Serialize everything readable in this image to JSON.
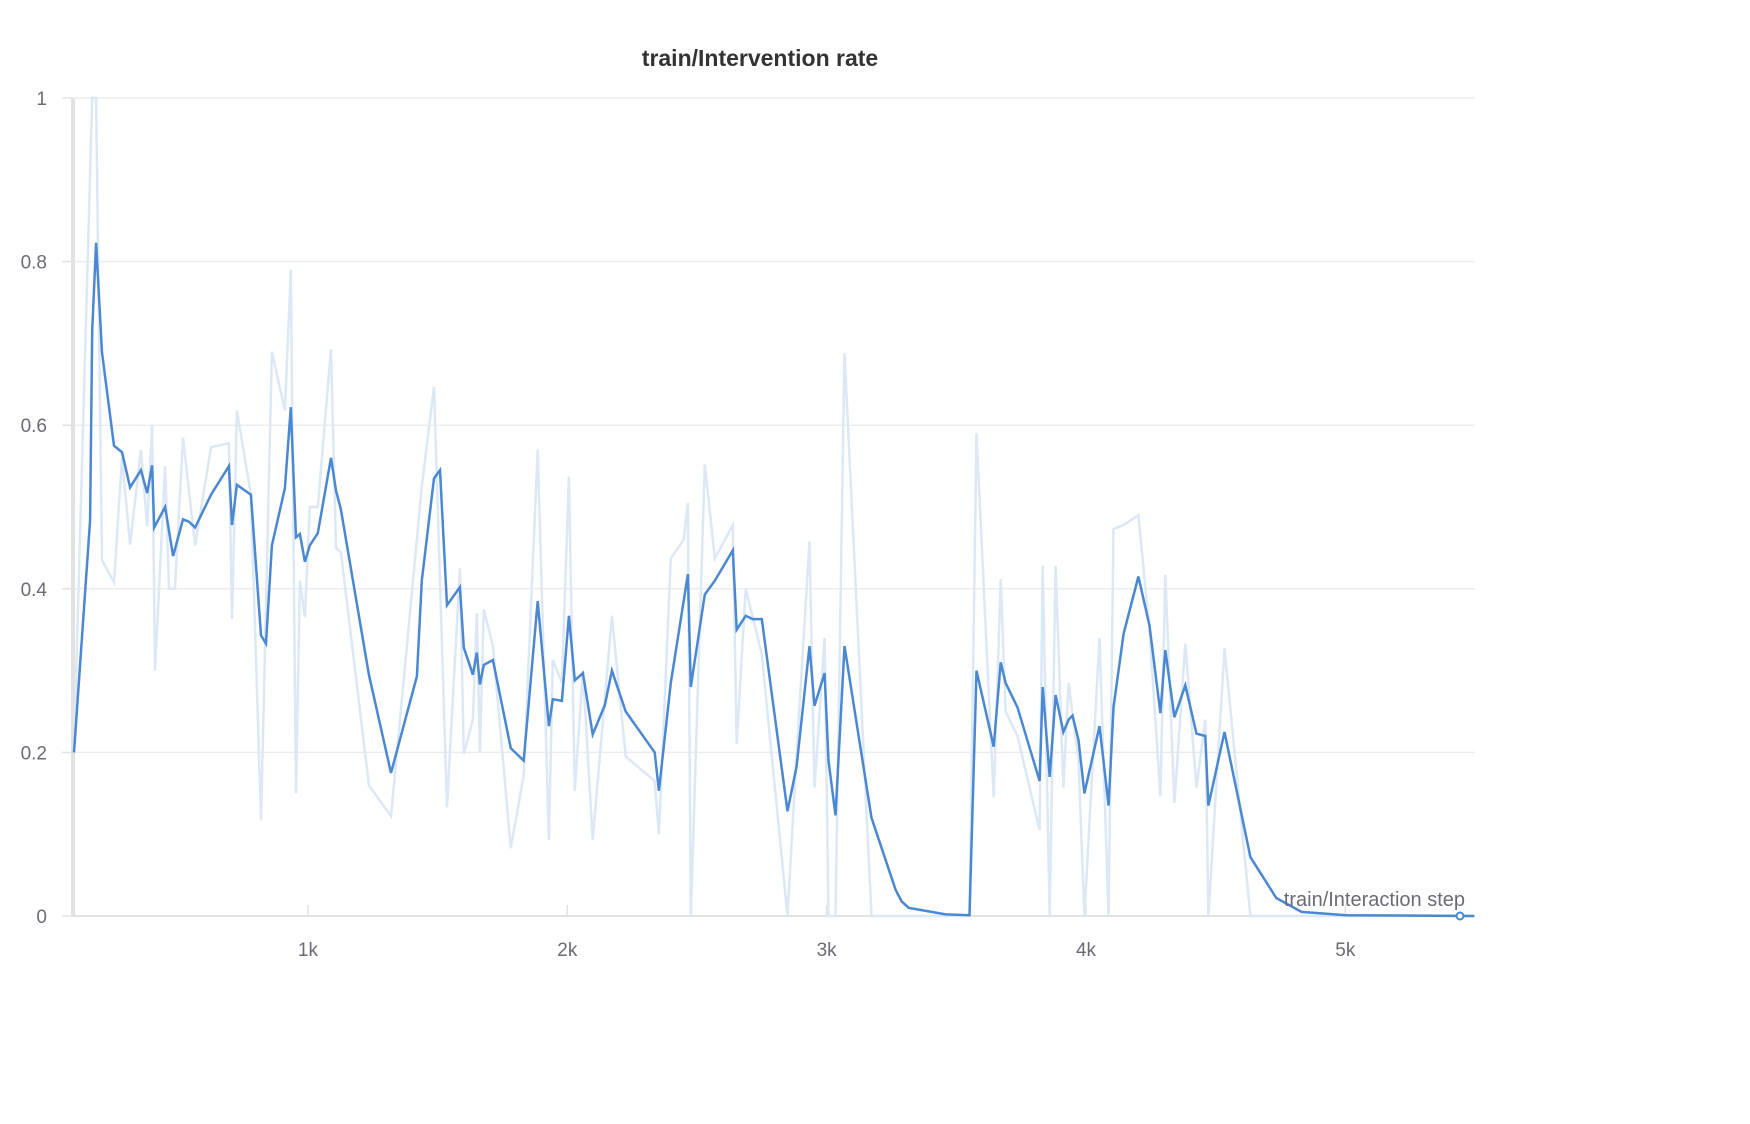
{
  "chart_data": {
    "type": "line",
    "title": "train/Intervention rate",
    "xlabel": "train/Interaction step",
    "ylabel": "",
    "xlim": [
      94,
      5500
    ],
    "ylim": [
      0,
      1
    ],
    "grid": true,
    "legend": "none",
    "x_ticks": [
      1000,
      2000,
      3000,
      4000,
      5000
    ],
    "x_tick_labels": [
      "1k",
      "2k",
      "3k",
      "4k",
      "5k"
    ],
    "y_ticks": [
      0,
      0.2,
      0.4,
      0.6,
      0.8,
      1
    ],
    "y_tick_labels": [
      "0",
      "0.2",
      "0.4",
      "0.6",
      "0.8",
      "1"
    ],
    "colors": {
      "smoothed": "#4a88d4",
      "raw": "#dce8f6",
      "grid": "#ececf0",
      "axis": "#e2e2e2"
    },
    "series": [
      {
        "role": "raw",
        "x": [
          98,
          168,
          183,
          206,
          252,
          283,
          314,
          356,
          380,
          399,
          410,
          449,
          464,
          487,
          518,
          565,
          626,
          695,
          707,
          726,
          780,
          819,
          861,
          911,
          934,
          954,
          969,
          988,
          1007,
          1038,
          1089,
          1108,
          1127,
          1235,
          1320,
          1439,
          1486,
          1536,
          1586,
          1601,
          1636,
          1651,
          1663,
          1678,
          1713,
          1782,
          1832,
          1886,
          1929,
          1944,
          1979,
          2006,
          2029,
          2060,
          2098,
          2172,
          2225,
          2337,
          2353,
          2399,
          2449,
          2465,
          2476,
          2530,
          2569,
          2638,
          2653,
          2688,
          2750,
          2849,
          2884,
          2934,
          2953,
          2992,
          3007,
          3034,
          3069,
          3173,
          3551,
          3578,
          3644,
          3671,
          3690,
          3736,
          3821,
          3833,
          3860,
          3883,
          3913,
          3933,
          3971,
          3994,
          4052,
          4087,
          4106,
          4145,
          4202,
          4245,
          4287,
          4306,
          4341,
          4383,
          4426,
          4460,
          4472,
          4534,
          4634,
          5497
        ],
        "y": [
          0.2,
          1,
          1,
          0.435,
          0.408,
          0.56,
          0.454,
          0.57,
          0.476,
          0.6,
          0.3,
          0.55,
          0.4,
          0.4,
          0.585,
          0.453,
          0.573,
          0.578,
          0.363,
          0.618,
          0.515,
          0.117,
          0.69,
          0.618,
          0.79,
          0.15,
          0.41,
          0.365,
          0.5,
          0.5,
          0.693,
          0.45,
          0.445,
          0.16,
          0.122,
          0.525,
          0.647,
          0.133,
          0.425,
          0.198,
          0.24,
          0.37,
          0.2,
          0.375,
          0.33,
          0.083,
          0.172,
          0.57,
          0.093,
          0.313,
          0.285,
          0.537,
          0.153,
          0.3,
          0.093,
          0.367,
          0.195,
          0.165,
          0.1,
          0.437,
          0.46,
          0.505,
          0,
          0.552,
          0.437,
          0.478,
          0.21,
          0.4,
          0.32,
          0,
          0.197,
          0.458,
          0.157,
          0.34,
          0,
          0,
          0.688,
          0,
          0,
          0.59,
          0.145,
          0.412,
          0.25,
          0.22,
          0.105,
          0.428,
          0,
          0.428,
          0.157,
          0.285,
          0.19,
          0,
          0.34,
          0,
          0.473,
          0.478,
          0.49,
          0.35,
          0.147,
          0.417,
          0.138,
          0.333,
          0.157,
          0.24,
          0,
          0.327,
          0,
          0
        ]
      },
      {
        "role": "smoothed",
        "x": [
          98,
          160,
          168,
          183,
          206,
          252,
          283,
          314,
          356,
          380,
          399,
          407,
          449,
          480,
          518,
          541,
          565,
          626,
          695,
          707,
          726,
          780,
          819,
          838,
          861,
          911,
          934,
          954,
          969,
          988,
          1007,
          1038,
          1089,
          1108,
          1127,
          1235,
          1320,
          1420,
          1439,
          1486,
          1509,
          1536,
          1586,
          1601,
          1636,
          1651,
          1663,
          1678,
          1713,
          1782,
          1832,
          1886,
          1929,
          1944,
          1979,
          2006,
          2029,
          2060,
          2098,
          2145,
          2172,
          2225,
          2337,
          2353,
          2399,
          2465,
          2476,
          2530,
          2569,
          2638,
          2653,
          2688,
          2715,
          2750,
          2849,
          2884,
          2934,
          2953,
          2992,
          3007,
          3034,
          3069,
          3173,
          3266,
          3289,
          3316,
          3459,
          3551,
          3578,
          3644,
          3671,
          3690,
          3736,
          3821,
          3833,
          3860,
          3883,
          3913,
          3933,
          3948,
          3971,
          3994,
          4052,
          4087,
          4106,
          4145,
          4202,
          4245,
          4287,
          4306,
          4341,
          4383,
          4426,
          4460,
          4472,
          4534,
          4634,
          4734,
          4831,
          5004,
          5497
        ],
        "y": [
          0.2,
          0.484,
          0.716,
          0.823,
          0.689,
          0.575,
          0.567,
          0.524,
          0.545,
          0.517,
          0.551,
          0.475,
          0.5,
          0.44,
          0.485,
          0.482,
          0.475,
          0.515,
          0.55,
          0.478,
          0.527,
          0.515,
          0.343,
          0.333,
          0.453,
          0.523,
          0.622,
          0.463,
          0.467,
          0.433,
          0.453,
          0.468,
          0.56,
          0.52,
          0.497,
          0.295,
          0.175,
          0.293,
          0.41,
          0.535,
          0.545,
          0.38,
          0.402,
          0.328,
          0.295,
          0.322,
          0.283,
          0.307,
          0.313,
          0.205,
          0.19,
          0.385,
          0.232,
          0.265,
          0.263,
          0.367,
          0.288,
          0.297,
          0.222,
          0.258,
          0.3,
          0.25,
          0.2,
          0.153,
          0.285,
          0.418,
          0.28,
          0.393,
          0.41,
          0.447,
          0.35,
          0.367,
          0.363,
          0.363,
          0.128,
          0.183,
          0.33,
          0.257,
          0.297,
          0.19,
          0.123,
          0.33,
          0.12,
          0.032,
          0.018,
          0.01,
          0.002,
          0.001,
          0.3,
          0.207,
          0.31,
          0.285,
          0.255,
          0.165,
          0.28,
          0.17,
          0.27,
          0.225,
          0.24,
          0.245,
          0.215,
          0.15,
          0.232,
          0.135,
          0.255,
          0.345,
          0.415,
          0.355,
          0.248,
          0.325,
          0.243,
          0.282,
          0.223,
          0.22,
          0.135,
          0.225,
          0.072,
          0.022,
          0.005,
          0.001,
          0
        ]
      }
    ]
  }
}
